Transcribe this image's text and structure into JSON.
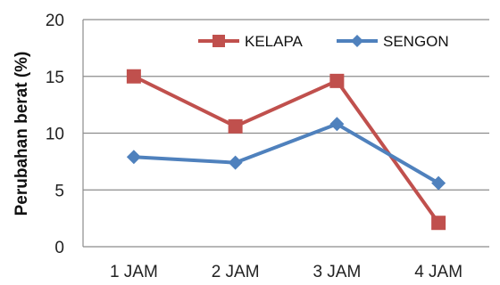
{
  "chart_data": {
    "type": "line",
    "categories": [
      "1 JAM",
      "2 JAM",
      "3 JAM",
      "4 JAM"
    ],
    "series": [
      {
        "name": "KELAPA",
        "values": [
          15.0,
          10.6,
          14.6,
          2.1
        ],
        "color": "#c0504d",
        "marker": "square"
      },
      {
        "name": "SENGON",
        "values": [
          7.9,
          7.4,
          10.8,
          5.6
        ],
        "color": "#4f81bd",
        "marker": "diamond"
      }
    ],
    "title": "",
    "xlabel": "",
    "ylabel": "Perubahan berat (%)",
    "ylim": [
      0,
      20
    ],
    "yticks": [
      0,
      5,
      10,
      15,
      20
    ],
    "grid": true,
    "legend_position": "top-right"
  }
}
